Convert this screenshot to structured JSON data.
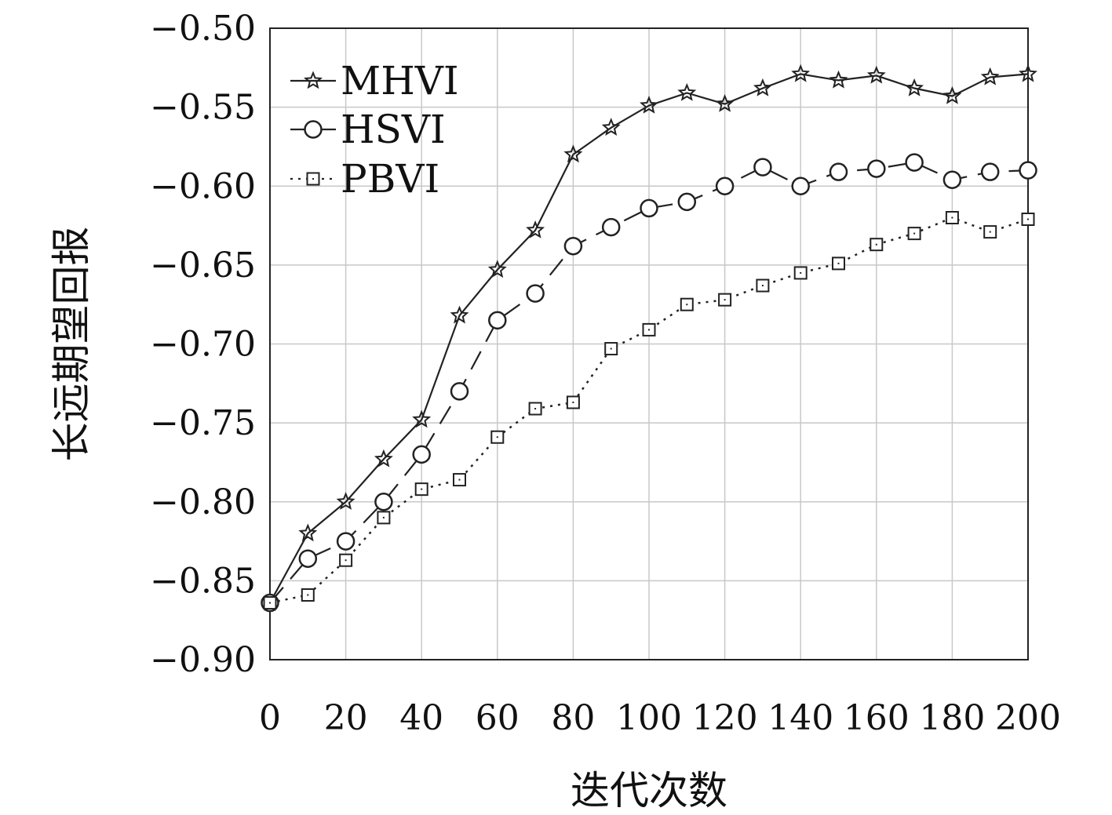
{
  "chart_data": {
    "type": "line",
    "xlabel": "迭代次数",
    "ylabel": "长远期望回报",
    "xlim": [
      0,
      200
    ],
    "ylim": [
      -0.9,
      -0.5
    ],
    "xticks": [
      0,
      20,
      40,
      60,
      80,
      100,
      120,
      140,
      160,
      180,
      200
    ],
    "yticks": [
      -0.9,
      -0.85,
      -0.8,
      -0.75,
      -0.7,
      -0.65,
      -0.6,
      -0.55,
      -0.5
    ],
    "ytick_labels": [
      "−0.90",
      "−0.85",
      "−0.80",
      "−0.75",
      "−0.70",
      "−0.65",
      "−0.60",
      "−0.55",
      "−0.50"
    ],
    "xtick_labels": [
      "0",
      "20",
      "40",
      "60",
      "80",
      "100",
      "120",
      "140",
      "160",
      "180",
      "200"
    ],
    "grid": true,
    "legend_position": "top-left",
    "x": [
      0,
      10,
      20,
      30,
      40,
      50,
      60,
      70,
      80,
      90,
      100,
      110,
      120,
      130,
      140,
      150,
      160,
      170,
      180,
      190,
      200
    ],
    "series": [
      {
        "name": "MHVI",
        "marker": "star",
        "linestyle": "solid",
        "color": "#222222",
        "values": [
          -0.864,
          -0.82,
          -0.8,
          -0.773,
          -0.748,
          -0.682,
          -0.653,
          -0.628,
          -0.58,
          -0.563,
          -0.549,
          -0.541,
          -0.548,
          -0.538,
          -0.529,
          -0.533,
          -0.53,
          -0.538,
          -0.543,
          -0.531,
          -0.529
        ]
      },
      {
        "name": "HSVI",
        "marker": "circle",
        "linestyle": "dashed",
        "color": "#222222",
        "values": [
          -0.864,
          -0.836,
          -0.825,
          -0.8,
          -0.77,
          -0.73,
          -0.685,
          -0.668,
          -0.638,
          -0.626,
          -0.614,
          -0.61,
          -0.6,
          -0.588,
          -0.6,
          -0.591,
          -0.589,
          -0.585,
          -0.596,
          -0.591,
          -0.59
        ]
      },
      {
        "name": "PBVI",
        "marker": "square",
        "linestyle": "dotted",
        "color": "#222222",
        "values": [
          -0.864,
          -0.859,
          -0.837,
          -0.81,
          -0.792,
          -0.786,
          -0.759,
          -0.741,
          -0.737,
          -0.703,
          -0.691,
          -0.675,
          -0.672,
          -0.663,
          -0.655,
          -0.649,
          -0.637,
          -0.63,
          -0.62,
          -0.629,
          -0.621
        ]
      }
    ]
  }
}
